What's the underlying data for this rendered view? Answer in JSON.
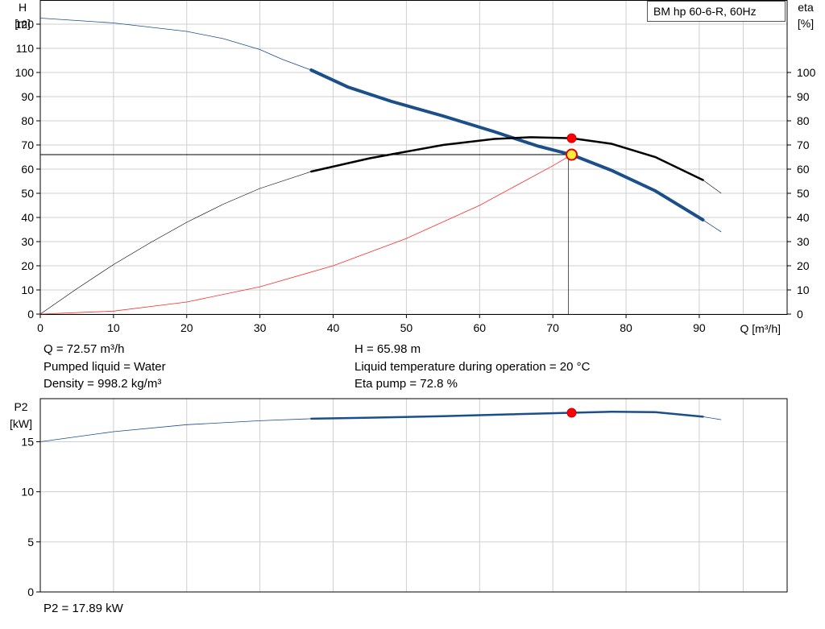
{
  "chart_data": [
    {
      "type": "line",
      "name_box": "BM hp 60-6-R, 60Hz",
      "x_axis": {
        "label": "Q [m³/h]",
        "range": [
          0,
          102
        ],
        "ticks": [
          0,
          10,
          20,
          30,
          40,
          50,
          60,
          70,
          80,
          90
        ]
      },
      "y_left": {
        "label_top": "H",
        "label_unit": "[m]",
        "range": [
          0,
          130
        ],
        "ticks": [
          0,
          10,
          20,
          30,
          40,
          50,
          60,
          70,
          80,
          90,
          100,
          110,
          120
        ]
      },
      "y_right": {
        "label_top": "eta",
        "label_unit": "[%]",
        "range": [
          0,
          130
        ],
        "ticks": [
          0,
          10,
          20,
          30,
          40,
          50,
          60,
          70,
          80,
          90,
          100
        ]
      },
      "grid": true,
      "series": [
        {
          "id": "head",
          "color": "#1a4f8a",
          "x": [
            0,
            10,
            20,
            25,
            30,
            33,
            37,
            42,
            48,
            55,
            62,
            68,
            72.57,
            78,
            84,
            90.5,
            93
          ],
          "y": [
            122.5,
            120.5,
            117,
            114,
            109.5,
            105.5,
            101,
            94,
            88,
            82,
            75.5,
            69.5,
            65.98,
            59.5,
            51,
            39,
            34
          ],
          "bold_range": [
            37,
            90.5
          ]
        },
        {
          "id": "efficiency",
          "color": "#000000",
          "x": [
            0,
            5,
            10,
            15,
            20,
            25,
            30,
            37,
            45,
            55,
            62,
            67,
            72.57,
            78,
            84,
            90.5,
            93
          ],
          "y": [
            0,
            10.5,
            20.5,
            29.5,
            38,
            45.5,
            52,
            59,
            64.5,
            70,
            72.5,
            73.2,
            72.8,
            70.5,
            65,
            55.5,
            50
          ],
          "bold_range": [
            37,
            90.5
          ]
        },
        {
          "id": "system",
          "color": "#ff2a2a",
          "x": [
            0,
            10,
            20,
            30,
            40,
            50,
            60,
            70,
            72.57
          ],
          "y": [
            0,
            1.25,
            5.01,
            11.3,
            20,
            31.3,
            45,
            61.4,
            65.98
          ]
        }
      ],
      "operating_point": {
        "q": 72.57,
        "h": 65.98,
        "eta": 72.8,
        "head_marker_color": "#ffeb3b",
        "eta_marker_color": "#ff0000"
      }
    },
    {
      "type": "line",
      "y_axis": {
        "label_top": "P2",
        "label_unit": "[kW]",
        "range": [
          0,
          19.3
        ],
        "ticks": [
          0,
          5,
          10,
          15
        ]
      },
      "x_axis": {
        "range": [
          0,
          102
        ],
        "ticks": [
          0,
          10,
          20,
          30,
          40,
          50,
          60,
          70,
          80,
          90
        ]
      },
      "grid": true,
      "series": [
        {
          "id": "power",
          "color": "#1a4f8a",
          "x": [
            0,
            10,
            20,
            30,
            37,
            45,
            55,
            65,
            72.57,
            78,
            84,
            90.5,
            93
          ],
          "y": [
            15,
            16,
            16.7,
            17.1,
            17.3,
            17.4,
            17.55,
            17.75,
            17.89,
            18,
            17.95,
            17.5,
            17.2
          ],
          "bold_range": [
            37,
            90.5
          ]
        }
      ],
      "operating_point": {
        "q": 72.57,
        "p2": 17.89,
        "marker_color": "#ff0000"
      }
    }
  ],
  "info": {
    "q": "Q = 72.57 m³/h",
    "liquid": "Pumped liquid = Water",
    "density": "Density = 998.2 kg/m³",
    "h": "H = 65.98 m",
    "temperature": "Liquid temperature during operation = 20 °C",
    "eta": "Eta pump = 72.8 %",
    "p2": "P2 = 17.89 kW"
  }
}
